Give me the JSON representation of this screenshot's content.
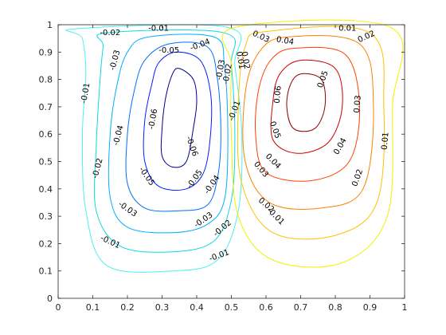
{
  "chart_data": {
    "type": "contour",
    "title": "",
    "xlabel": "",
    "ylabel": "",
    "xlim": [
      0,
      1
    ],
    "ylim": [
      0,
      1
    ],
    "grid": false,
    "xticks": [
      "0",
      "0.1",
      "0.2",
      "0.3",
      "0.4",
      "0.5",
      "0.6",
      "0.7",
      "0.8",
      "0.9",
      "1"
    ],
    "yticks": [
      "0",
      "0.1",
      "0.2",
      "0.3",
      "0.4",
      "0.5",
      "0.6",
      "0.7",
      "0.8",
      "0.9",
      "1"
    ],
    "colors": {
      "-0.06": "#00008f",
      "-0.05": "#0020ff",
      "-0.04": "#0070ff",
      "-0.03": "#00b0ff",
      "-0.02": "#10d8e0",
      "-0.01": "#50f0f0",
      "0.01": "#f0f000",
      "0.02": "#ffc000",
      "0.03": "#ff8000",
      "0.04": "#ff4000",
      "0.05": "#d00000",
      "0.06": "#8f0000"
    },
    "contours": [
      {
        "level": "-0.06",
        "pts": [
          [
            0.35,
            0.84
          ],
          [
            0.39,
            0.8
          ],
          [
            0.4,
            0.72
          ],
          [
            0.39,
            0.62
          ],
          [
            0.37,
            0.5
          ],
          [
            0.33,
            0.48
          ],
          [
            0.3,
            0.52
          ],
          [
            0.3,
            0.62
          ],
          [
            0.31,
            0.73
          ],
          [
            0.33,
            0.82
          ]
        ]
      },
      {
        "level": "-0.05",
        "pts": [
          [
            0.34,
            0.9
          ],
          [
            0.41,
            0.87
          ],
          [
            0.44,
            0.75
          ],
          [
            0.44,
            0.6
          ],
          [
            0.42,
            0.46
          ],
          [
            0.37,
            0.4
          ],
          [
            0.29,
            0.41
          ],
          [
            0.25,
            0.5
          ],
          [
            0.25,
            0.65
          ],
          [
            0.27,
            0.78
          ],
          [
            0.29,
            0.86
          ]
        ]
      },
      {
        "level": "-0.04",
        "pts": [
          [
            0.32,
            0.93
          ],
          [
            0.43,
            0.92
          ],
          [
            0.46,
            0.8
          ],
          [
            0.47,
            0.6
          ],
          [
            0.46,
            0.44
          ],
          [
            0.43,
            0.34
          ],
          [
            0.35,
            0.32
          ],
          [
            0.25,
            0.33
          ],
          [
            0.2,
            0.42
          ],
          [
            0.2,
            0.6
          ],
          [
            0.22,
            0.76
          ],
          [
            0.25,
            0.87
          ]
        ]
      },
      {
        "level": "-0.03",
        "pts": [
          [
            0.26,
            0.955
          ],
          [
            0.45,
            0.955
          ],
          [
            0.48,
            0.85
          ],
          [
            0.49,
            0.6
          ],
          [
            0.48,
            0.36
          ],
          [
            0.43,
            0.27
          ],
          [
            0.33,
            0.24
          ],
          [
            0.2,
            0.26
          ],
          [
            0.15,
            0.37
          ],
          [
            0.15,
            0.6
          ],
          [
            0.17,
            0.78
          ],
          [
            0.2,
            0.9
          ]
        ]
      },
      {
        "level": "-0.02",
        "pts": [
          [
            0.14,
            0.97
          ],
          [
            0.48,
            0.97
          ],
          [
            0.5,
            0.85
          ],
          [
            0.51,
            0.6
          ],
          [
            0.5,
            0.36
          ],
          [
            0.45,
            0.21
          ],
          [
            0.33,
            0.17
          ],
          [
            0.18,
            0.19
          ],
          [
            0.11,
            0.32
          ],
          [
            0.11,
            0.55
          ],
          [
            0.12,
            0.78
          ],
          [
            0.13,
            0.92
          ]
        ]
      },
      {
        "level": "-0.01",
        "pts": [
          [
            0.05,
            0.985
          ],
          [
            0.49,
            0.99
          ],
          [
            0.51,
            0.85
          ],
          [
            0.53,
            0.6
          ],
          [
            0.52,
            0.32
          ],
          [
            0.46,
            0.14
          ],
          [
            0.33,
            0.1
          ],
          [
            0.14,
            0.12
          ],
          [
            0.08,
            0.32
          ],
          [
            0.07,
            0.6
          ],
          [
            0.08,
            0.82
          ],
          [
            0.07,
            0.95
          ]
        ]
      },
      {
        "level": "0.06",
        "pts": [
          [
            0.7,
            0.82
          ],
          [
            0.76,
            0.8
          ],
          [
            0.77,
            0.7
          ],
          [
            0.74,
            0.62
          ],
          [
            0.68,
            0.62
          ],
          [
            0.66,
            0.7
          ],
          [
            0.67,
            0.78
          ]
        ]
      },
      {
        "level": "0.05",
        "pts": [
          [
            0.7,
            0.87
          ],
          [
            0.8,
            0.84
          ],
          [
            0.82,
            0.7
          ],
          [
            0.78,
            0.57
          ],
          [
            0.69,
            0.53
          ],
          [
            0.62,
            0.58
          ],
          [
            0.62,
            0.72
          ],
          [
            0.64,
            0.82
          ]
        ]
      },
      {
        "level": "0.04",
        "pts": [
          [
            0.69,
            0.915
          ],
          [
            0.83,
            0.89
          ],
          [
            0.87,
            0.7
          ],
          [
            0.84,
            0.5
          ],
          [
            0.73,
            0.43
          ],
          [
            0.6,
            0.46
          ],
          [
            0.57,
            0.6
          ],
          [
            0.58,
            0.77
          ],
          [
            0.62,
            0.88
          ]
        ]
      },
      {
        "level": "0.03",
        "pts": [
          [
            0.66,
            0.955
          ],
          [
            0.87,
            0.93
          ],
          [
            0.91,
            0.7
          ],
          [
            0.88,
            0.4
          ],
          [
            0.76,
            0.33
          ],
          [
            0.61,
            0.35
          ],
          [
            0.54,
            0.5
          ],
          [
            0.54,
            0.75
          ],
          [
            0.58,
            0.9
          ]
        ]
      },
      {
        "level": "0.02",
        "pts": [
          [
            0.6,
            0.975
          ],
          [
            0.9,
            0.97
          ],
          [
            0.94,
            0.7
          ],
          [
            0.92,
            0.35
          ],
          [
            0.8,
            0.23
          ],
          [
            0.62,
            0.24
          ],
          [
            0.53,
            0.42
          ],
          [
            0.52,
            0.7
          ],
          [
            0.54,
            0.92
          ]
        ]
      },
      {
        "level": "0.01",
        "pts": [
          [
            0.51,
            0.99
          ],
          [
            0.96,
            0.99
          ],
          [
            0.965,
            0.7
          ],
          [
            0.95,
            0.3
          ],
          [
            0.82,
            0.13
          ],
          [
            0.62,
            0.14
          ],
          [
            0.52,
            0.3
          ],
          [
            0.5,
            0.6
          ],
          [
            0.5,
            0.85
          ]
        ]
      }
    ],
    "labels": [
      {
        "text": "-0.01",
        "x": 0.29,
        "y": 0.985,
        "angle": 0
      },
      {
        "text": "-0.02",
        "x": 0.15,
        "y": 0.97,
        "angle": 0
      },
      {
        "text": "-0.03",
        "x": 0.165,
        "y": 0.87,
        "angle": -75
      },
      {
        "text": "-0.05",
        "x": 0.32,
        "y": 0.905,
        "angle": 0
      },
      {
        "text": "-0.04",
        "x": 0.41,
        "y": 0.925,
        "angle": -20
      },
      {
        "text": "-0.01",
        "x": 0.08,
        "y": 0.75,
        "angle": -80
      },
      {
        "text": "-0.06",
        "x": 0.275,
        "y": 0.655,
        "angle": -80
      },
      {
        "text": "-0.04",
        "x": 0.175,
        "y": 0.595,
        "angle": -75
      },
      {
        "text": "-0.06",
        "x": 0.385,
        "y": 0.555,
        "angle": 70
      },
      {
        "text": "-0.02",
        "x": 0.115,
        "y": 0.475,
        "angle": -75
      },
      {
        "text": "-0.05",
        "x": 0.255,
        "y": 0.445,
        "angle": 55
      },
      {
        "text": "-0.05",
        "x": 0.395,
        "y": 0.435,
        "angle": -55
      },
      {
        "text": "-0.04",
        "x": 0.445,
        "y": 0.415,
        "angle": -55
      },
      {
        "text": "-0.03",
        "x": 0.2,
        "y": 0.325,
        "angle": 35
      },
      {
        "text": "-0.03",
        "x": 0.42,
        "y": 0.285,
        "angle": -35
      },
      {
        "text": "-0.02",
        "x": 0.475,
        "y": 0.255,
        "angle": -40
      },
      {
        "text": "-0.01",
        "x": 0.15,
        "y": 0.205,
        "angle": 25
      },
      {
        "text": "-0.01",
        "x": 0.465,
        "y": 0.155,
        "angle": -20
      },
      {
        "text": "-0.03",
        "x": 0.47,
        "y": 0.835,
        "angle": -80
      },
      {
        "text": "-0.02",
        "x": 0.49,
        "y": 0.82,
        "angle": -80
      },
      {
        "text": "-0.01",
        "x": 0.51,
        "y": 0.685,
        "angle": -70
      },
      {
        "text": "0.01",
        "x": 0.525,
        "y": 0.87,
        "angle": 80
      },
      {
        "text": "0.02",
        "x": 0.54,
        "y": 0.87,
        "angle": 80
      },
      {
        "text": "0.03",
        "x": 0.585,
        "y": 0.955,
        "angle": 25
      },
      {
        "text": "0.04",
        "x": 0.655,
        "y": 0.94,
        "angle": 10
      },
      {
        "text": "0.01",
        "x": 0.835,
        "y": 0.985,
        "angle": 0
      },
      {
        "text": "0.02",
        "x": 0.89,
        "y": 0.955,
        "angle": -25
      },
      {
        "text": "0.05",
        "x": 0.765,
        "y": 0.8,
        "angle": -70
      },
      {
        "text": "0.06",
        "x": 0.635,
        "y": 0.745,
        "angle": -85
      },
      {
        "text": "0.03",
        "x": 0.865,
        "y": 0.71,
        "angle": -85
      },
      {
        "text": "0.05",
        "x": 0.625,
        "y": 0.615,
        "angle": 70
      },
      {
        "text": "0.01",
        "x": 0.945,
        "y": 0.575,
        "angle": -85
      },
      {
        "text": "0.04",
        "x": 0.815,
        "y": 0.555,
        "angle": -60
      },
      {
        "text": "0.04",
        "x": 0.62,
        "y": 0.5,
        "angle": 45
      },
      {
        "text": "0.03",
        "x": 0.585,
        "y": 0.47,
        "angle": 50
      },
      {
        "text": "0.02",
        "x": 0.865,
        "y": 0.44,
        "angle": -70
      },
      {
        "text": "0.02",
        "x": 0.6,
        "y": 0.34,
        "angle": 40
      },
      {
        "text": "0.01",
        "x": 0.63,
        "y": 0.295,
        "angle": 45
      }
    ]
  }
}
